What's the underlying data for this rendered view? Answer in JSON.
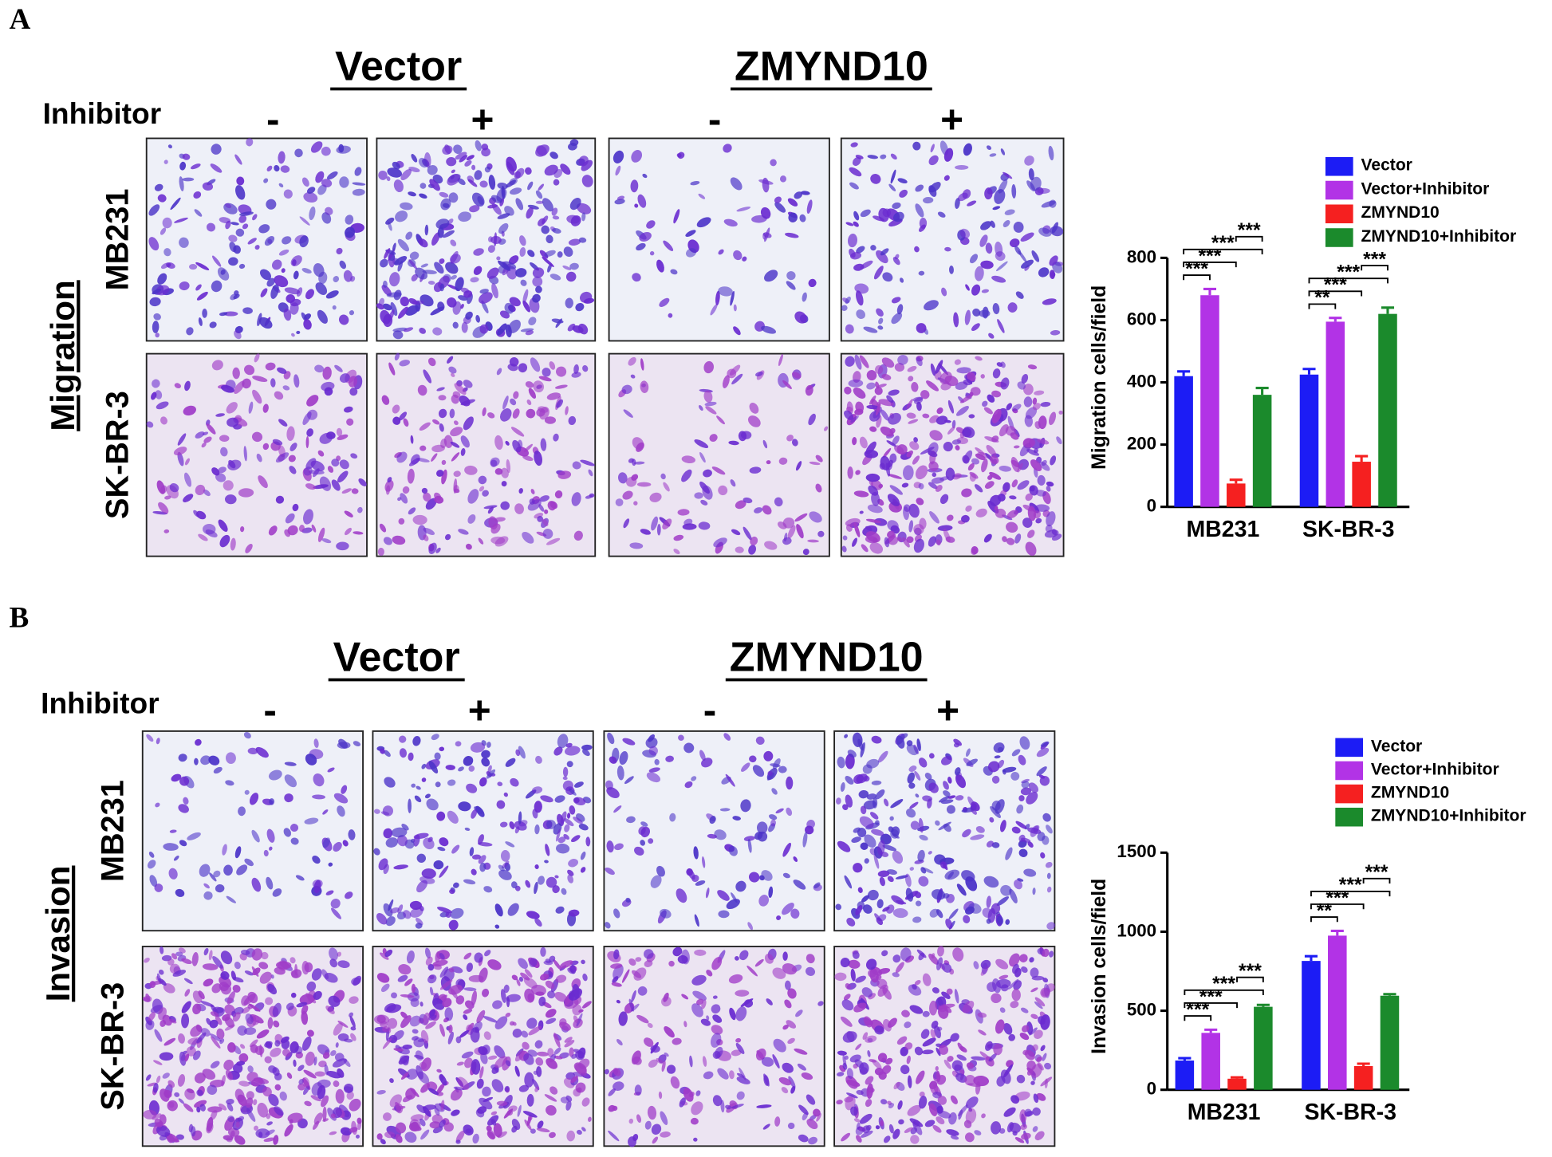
{
  "panels": [
    {
      "label": "A",
      "groups": [
        "Vector",
        "ZMYND10"
      ],
      "inhibitor_label": "Inhibitor",
      "inhibitor": [
        "-",
        "+",
        "-",
        "+"
      ],
      "rows": [
        "MB231",
        "SK-BR-3"
      ],
      "assay": "Migration"
    },
    {
      "label": "B",
      "groups": [
        "Vector",
        "ZMYND10"
      ],
      "inhibitor_label": "Inhibitor",
      "inhibitor": [
        "-",
        "+",
        "-",
        "+"
      ],
      "rows": [
        "MB231",
        "SK-BR-3"
      ],
      "assay": "Invasion"
    }
  ],
  "chart_data": [
    {
      "type": "bar",
      "y_label": "Migration cells/field",
      "categories": [
        "MB231",
        "SK-BR-3"
      ],
      "ylim": [
        0,
        800
      ],
      "yticks": [
        0,
        200,
        400,
        600,
        800
      ],
      "series": [
        {
          "name": "Vector",
          "color": "#1c1cf5",
          "values": [
            420,
            425
          ],
          "errors": [
            15,
            18
          ]
        },
        {
          "name": "Vector+Inhibitor",
          "color": "#b233e6",
          "values": [
            680,
            595
          ],
          "errors": [
            20,
            12
          ]
        },
        {
          "name": "ZMYND10",
          "color": "#f52020",
          "values": [
            75,
            145
          ],
          "errors": [
            12,
            18
          ]
        },
        {
          "name": "ZMYND10+Inhibitor",
          "color": "#1b8a2c",
          "values": [
            360,
            620
          ],
          "errors": [
            22,
            20
          ]
        }
      ],
      "comparisons": [
        {
          "group": 0,
          "from": 0,
          "to": 1,
          "label": "***"
        },
        {
          "group": 0,
          "from": 0,
          "to": 2,
          "label": "***"
        },
        {
          "group": 0,
          "from": 0,
          "to": 3,
          "label": "***"
        },
        {
          "group": 0,
          "from": 2,
          "to": 3,
          "label": "***"
        },
        {
          "group": 1,
          "from": 0,
          "to": 1,
          "label": "**"
        },
        {
          "group": 1,
          "from": 0,
          "to": 2,
          "label": "***"
        },
        {
          "group": 1,
          "from": 0,
          "to": 3,
          "label": "***"
        },
        {
          "group": 1,
          "from": 2,
          "to": 3,
          "label": "***"
        }
      ]
    },
    {
      "type": "bar",
      "y_label": "Invasion cells/field",
      "categories": [
        "MB231",
        "SK-BR-3"
      ],
      "ylim": [
        0,
        1500
      ],
      "yticks": [
        0,
        500,
        1000,
        1500
      ],
      "series": [
        {
          "name": "Vector",
          "color": "#1c1cf5",
          "values": [
            185,
            815
          ],
          "errors": [
            15,
            30
          ]
        },
        {
          "name": "Vector+Inhibitor",
          "color": "#b233e6",
          "values": [
            360,
            975
          ],
          "errors": [
            20,
            30
          ]
        },
        {
          "name": "ZMYND10",
          "color": "#f52020",
          "values": [
            70,
            150
          ],
          "errors": [
            8,
            15
          ]
        },
        {
          "name": "ZMYND10+Inhibitor",
          "color": "#1b8a2c",
          "values": [
            525,
            595
          ],
          "errors": [
            12,
            10
          ]
        }
      ],
      "comparisons": [
        {
          "group": 0,
          "from": 0,
          "to": 1,
          "label": "***"
        },
        {
          "group": 0,
          "from": 0,
          "to": 2,
          "label": "***"
        },
        {
          "group": 0,
          "from": 0,
          "to": 3,
          "label": "***"
        },
        {
          "group": 0,
          "from": 2,
          "to": 3,
          "label": "***"
        },
        {
          "group": 1,
          "from": 0,
          "to": 1,
          "label": "**"
        },
        {
          "group": 1,
          "from": 0,
          "to": 2,
          "label": "***"
        },
        {
          "group": 1,
          "from": 0,
          "to": 3,
          "label": "***"
        },
        {
          "group": 1,
          "from": 2,
          "to": 3,
          "label": "***"
        }
      ]
    }
  ]
}
